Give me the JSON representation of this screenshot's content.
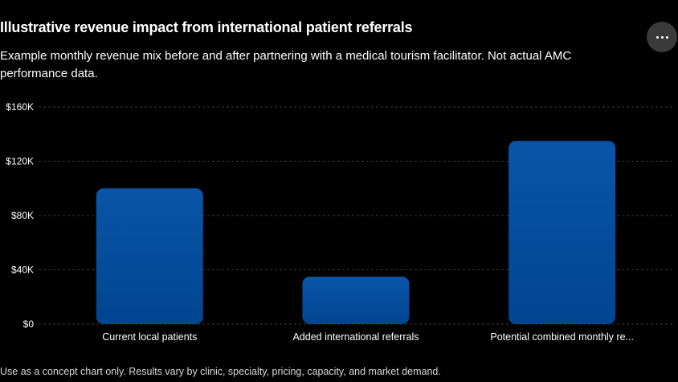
{
  "header": {
    "title": "Illustrative revenue impact from international patient referrals",
    "subtitle": "Example monthly revenue mix before and after partnering with a medical tourism facilitator. Not actual AMC performance data."
  },
  "menu": {
    "icon": "more-horizontal-icon"
  },
  "footnote": "Use as a concept chart only. Results vary by clinic, specialty, pricing, capacity, and market demand.",
  "colors": {
    "background": "#000000",
    "bar_top": "#0a55a8",
    "bar_bottom": "#004590",
    "grid": "#3a3a3a",
    "text": "#ffffff"
  },
  "chart_data": {
    "type": "bar",
    "categories": [
      "Current local patients",
      "Added international referrals",
      "Potential combined monthly re..."
    ],
    "values": [
      100000,
      35000,
      135000
    ],
    "yticks": [
      0,
      40000,
      80000,
      120000,
      160000
    ],
    "ytick_labels": [
      "$0",
      "$40K",
      "$80K",
      "$120K",
      "$160K"
    ],
    "ylim": [
      0,
      160000
    ],
    "grid": true,
    "legend": "none"
  }
}
